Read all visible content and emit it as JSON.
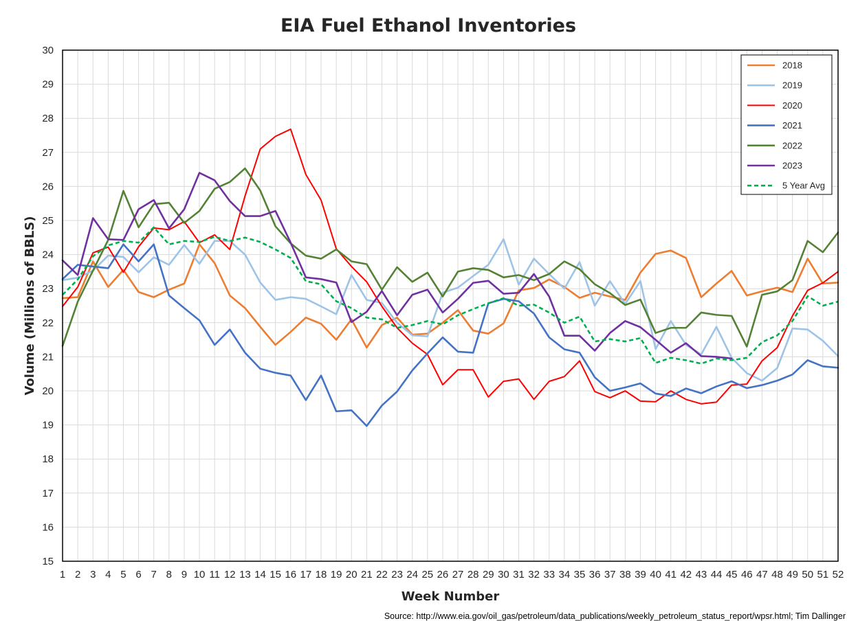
{
  "chart_data": {
    "type": "line",
    "title": "EIA Fuel Ethanol Inventories",
    "xlabel": "Week Number",
    "ylabel": "Volume (Millions of BBLS)",
    "source": "Source: http://www.eia.gov/oil_gas/petroleum/data_publications/weekly_petroleum_status_report/wpsr.html; Tim Dallinger",
    "xlim": [
      1,
      52
    ],
    "ylim": [
      15,
      30
    ],
    "yticks": [
      15,
      16,
      17,
      18,
      19,
      20,
      21,
      22,
      23,
      24,
      25,
      26,
      27,
      28,
      29,
      30
    ],
    "x": [
      1,
      2,
      3,
      4,
      5,
      6,
      7,
      8,
      9,
      10,
      11,
      12,
      13,
      14,
      15,
      16,
      17,
      18,
      19,
      20,
      21,
      22,
      23,
      24,
      25,
      26,
      27,
      28,
      29,
      30,
      31,
      32,
      33,
      34,
      35,
      36,
      37,
      38,
      39,
      40,
      41,
      42,
      43,
      44,
      45,
      46,
      47,
      48,
      49,
      50,
      51,
      52
    ],
    "grid": true,
    "legend_position": "top-right",
    "series": [
      {
        "name": "2018",
        "color": "#ED7D31",
        "dash": false,
        "width": 2.6,
        "values": [
          22.72,
          22.75,
          23.8,
          23.05,
          23.55,
          22.9,
          22.75,
          22.97,
          23.15,
          24.3,
          23.75,
          22.8,
          22.43,
          21.88,
          21.35,
          21.73,
          22.15,
          21.97,
          21.5,
          22.1,
          21.27,
          21.93,
          22.15,
          21.65,
          21.68,
          22.0,
          22.37,
          21.77,
          21.68,
          21.98,
          22.95,
          23.02,
          23.27,
          23.05,
          22.73,
          22.88,
          22.77,
          22.67,
          23.47,
          24.02,
          24.12,
          23.9,
          22.75,
          23.15,
          23.52,
          22.8,
          22.92,
          23.03,
          22.9,
          23.88,
          23.15,
          23.18
        ]
      },
      {
        "name": "2019",
        "color": "#9DC3E6",
        "dash": false,
        "width": 2.6,
        "values": [
          23.25,
          23.32,
          23.53,
          23.97,
          23.93,
          23.48,
          23.92,
          23.7,
          24.28,
          23.73,
          24.4,
          24.4,
          24.0,
          23.18,
          22.67,
          22.75,
          22.7,
          22.48,
          22.25,
          23.4,
          22.67,
          22.58,
          22.0,
          21.63,
          21.6,
          22.88,
          23.03,
          23.37,
          23.7,
          24.45,
          23.12,
          23.88,
          23.43,
          23.0,
          23.78,
          22.5,
          23.22,
          22.55,
          23.22,
          21.23,
          22.05,
          21.35,
          21.07,
          21.88,
          20.97,
          20.52,
          20.3,
          20.67,
          21.83,
          21.8,
          21.47,
          21.02
        ]
      },
      {
        "name": "2020",
        "color": "#FF0000",
        "dash": false,
        "width": 2.0,
        "values": [
          22.48,
          23.05,
          24.05,
          24.22,
          23.48,
          24.23,
          24.78,
          24.73,
          24.97,
          24.35,
          24.58,
          24.15,
          25.72,
          27.1,
          27.47,
          27.68,
          26.35,
          25.6,
          24.17,
          23.65,
          23.2,
          22.48,
          21.85,
          21.4,
          21.07,
          20.18,
          20.62,
          20.62,
          19.82,
          20.28,
          20.35,
          19.75,
          20.28,
          20.42,
          20.88,
          19.98,
          19.8,
          20.0,
          19.7,
          19.68,
          20.0,
          19.75,
          19.62,
          19.67,
          20.17,
          20.2,
          20.88,
          21.27,
          22.2,
          22.95,
          23.17,
          23.5
        ]
      },
      {
        "name": "2021",
        "color": "#4472C4",
        "dash": false,
        "width": 2.6,
        "values": [
          23.28,
          23.7,
          23.65,
          23.6,
          24.3,
          23.8,
          24.3,
          22.8,
          22.43,
          22.07,
          21.35,
          21.8,
          21.12,
          20.65,
          20.53,
          20.45,
          19.73,
          20.45,
          19.4,
          19.43,
          18.97,
          19.57,
          19.98,
          20.6,
          21.1,
          21.57,
          21.15,
          21.12,
          22.57,
          22.7,
          22.63,
          22.27,
          21.57,
          21.22,
          21.12,
          20.4,
          20.0,
          20.1,
          20.22,
          19.92,
          19.85,
          20.07,
          19.93,
          20.13,
          20.28,
          20.08,
          20.17,
          20.3,
          20.48,
          20.9,
          20.72,
          20.68
        ]
      },
      {
        "name": "2022",
        "color": "#548235",
        "dash": false,
        "width": 2.6,
        "values": [
          21.32,
          22.62,
          23.53,
          24.43,
          25.87,
          24.8,
          25.48,
          25.52,
          24.93,
          25.28,
          25.93,
          26.13,
          26.53,
          25.88,
          24.83,
          24.33,
          23.97,
          23.88,
          24.15,
          23.8,
          23.72,
          22.97,
          23.63,
          23.2,
          23.47,
          22.77,
          23.5,
          23.6,
          23.55,
          23.33,
          23.4,
          23.25,
          23.43,
          23.8,
          23.57,
          23.13,
          22.87,
          22.52,
          22.68,
          21.7,
          21.85,
          21.85,
          22.3,
          22.23,
          22.2,
          21.3,
          22.82,
          22.92,
          23.25,
          24.4,
          24.07,
          24.65
        ]
      },
      {
        "name": "2023",
        "color": "#7030A0",
        "dash": false,
        "width": 2.6,
        "values": [
          23.83,
          23.4,
          25.07,
          24.45,
          24.43,
          25.33,
          25.6,
          24.77,
          25.33,
          26.4,
          26.18,
          25.57,
          25.13,
          25.13,
          25.28,
          24.35,
          23.33,
          23.28,
          23.18,
          22.02,
          22.32,
          22.93,
          22.22,
          22.82,
          22.97,
          22.3,
          22.7,
          23.17,
          23.23,
          22.85,
          22.88,
          23.43,
          22.77,
          21.62,
          21.62,
          21.18,
          21.7,
          22.05,
          21.87,
          21.5,
          21.12,
          21.4,
          21.02,
          21.0,
          20.95,
          null,
          null,
          null,
          null,
          null,
          null,
          null
        ]
      },
      {
        "name": "5 Year Avg",
        "color": "#00B050",
        "dash": true,
        "width": 2.6,
        "values": [
          22.82,
          23.27,
          23.95,
          24.27,
          24.4,
          24.35,
          24.8,
          24.3,
          24.4,
          24.37,
          24.52,
          24.4,
          24.5,
          24.37,
          24.15,
          23.9,
          23.22,
          23.13,
          22.63,
          22.43,
          22.15,
          22.1,
          21.85,
          21.93,
          22.05,
          21.95,
          22.22,
          22.4,
          22.57,
          22.72,
          22.5,
          22.53,
          22.3,
          22.0,
          22.18,
          21.45,
          21.52,
          21.45,
          21.55,
          20.82,
          20.97,
          20.9,
          20.8,
          20.95,
          20.9,
          20.97,
          21.43,
          21.63,
          22.05,
          22.78,
          22.5,
          22.62
        ]
      }
    ]
  }
}
